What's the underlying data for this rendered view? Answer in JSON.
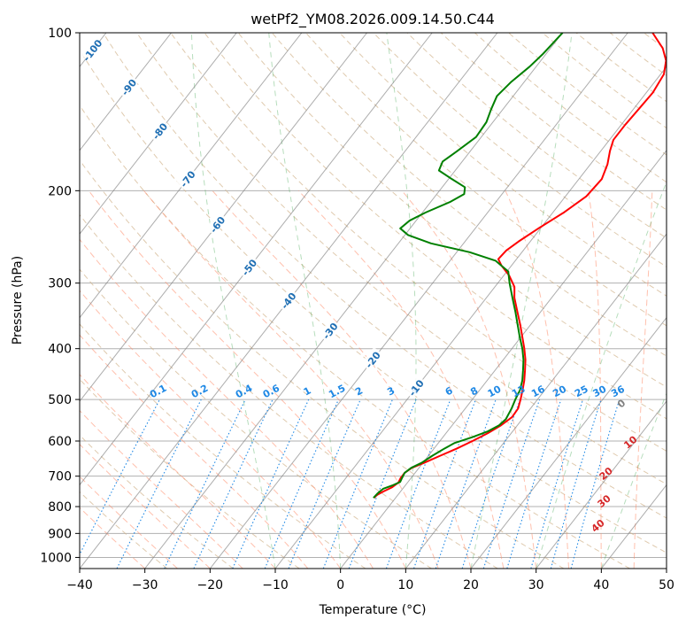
{
  "chart_data": {
    "type": "line",
    "subtype": "skew-t log-p",
    "title": "wetPf2_YM08.2026.009.14.50.C44",
    "xlabel": "Temperature (°C)",
    "ylabel": "Pressure (hPa)",
    "xlim": [
      -40,
      50
    ],
    "ylim": [
      1050,
      100
    ],
    "y_scale": "log",
    "grid": true,
    "x_ticks": [
      -40,
      -30,
      -20,
      -10,
      0,
      10,
      20,
      30,
      40,
      50
    ],
    "x_tick_labels": [
      "−40",
      "−30",
      "−20",
      "−10",
      "0",
      "10",
      "20",
      "30",
      "40",
      "50"
    ],
    "y_ticks": [
      100,
      200,
      300,
      400,
      500,
      600,
      700,
      800,
      900,
      1000
    ],
    "y_tick_labels": [
      "100",
      "200",
      "300",
      "400",
      "500",
      "600",
      "700",
      "800",
      "900",
      "1000"
    ],
    "series": [
      {
        "role": "temperature",
        "color": "#ff0000",
        "points": [
          [
            770,
            -3.3
          ],
          [
            760,
            -3.2
          ],
          [
            748,
            -2.6
          ],
          [
            735,
            -1.8
          ],
          [
            720,
            -1.4
          ],
          [
            705,
            -1.6
          ],
          [
            690,
            -1.6
          ],
          [
            675,
            -1.1
          ],
          [
            660,
            0.2
          ],
          [
            640,
            1.8
          ],
          [
            620,
            3.5
          ],
          [
            600,
            5.0
          ],
          [
            580,
            6.4
          ],
          [
            560,
            7.5
          ],
          [
            540,
            8.2
          ],
          [
            520,
            8.1
          ],
          [
            500,
            7.4
          ],
          [
            480,
            6.6
          ],
          [
            460,
            5.7
          ],
          [
            440,
            4.6
          ],
          [
            420,
            3.4
          ],
          [
            400,
            1.9
          ],
          [
            380,
            0.2
          ],
          [
            360,
            -1.6
          ],
          [
            340,
            -3.6
          ],
          [
            320,
            -5.7
          ],
          [
            305,
            -7.0
          ],
          [
            290,
            -9.2
          ],
          [
            278,
            -11.5
          ],
          [
            270,
            -12.8
          ],
          [
            260,
            -12.6
          ],
          [
            250,
            -11.8
          ],
          [
            235,
            -10.2
          ],
          [
            220,
            -8.3
          ],
          [
            205,
            -6.8
          ],
          [
            190,
            -6.5
          ],
          [
            178,
            -7.4
          ],
          [
            168,
            -8.6
          ],
          [
            160,
            -9.4
          ],
          [
            150,
            -9.4
          ],
          [
            140,
            -9.2
          ],
          [
            130,
            -9.0
          ],
          [
            120,
            -9.5
          ],
          [
            113,
            -10.8
          ],
          [
            107,
            -12.8
          ],
          [
            100,
            -16.2
          ]
        ]
      },
      {
        "role": "dewpoint",
        "color": "#008000",
        "points": [
          [
            770,
            -3.4
          ],
          [
            755,
            -3.3
          ],
          [
            740,
            -3.0
          ],
          [
            728,
            -1.9
          ],
          [
            718,
            -1.2
          ],
          [
            705,
            -1.4
          ],
          [
            690,
            -1.6
          ],
          [
            675,
            -1.2
          ],
          [
            660,
            -0.2
          ],
          [
            640,
            0.6
          ],
          [
            620,
            1.6
          ],
          [
            605,
            2.5
          ],
          [
            590,
            4.5
          ],
          [
            575,
            6.2
          ],
          [
            560,
            7.2
          ],
          [
            545,
            7.5
          ],
          [
            520,
            7.1
          ],
          [
            500,
            6.6
          ],
          [
            480,
            6.2
          ],
          [
            460,
            5.4
          ],
          [
            440,
            4.3
          ],
          [
            420,
            3.1
          ],
          [
            400,
            1.6
          ],
          [
            380,
            -0.2
          ],
          [
            360,
            -2.0
          ],
          [
            340,
            -3.9
          ],
          [
            320,
            -6.0
          ],
          [
            300,
            -8.2
          ],
          [
            285,
            -9.8
          ],
          [
            272,
            -13.0
          ],
          [
            262,
            -18.0
          ],
          [
            252,
            -25.0
          ],
          [
            243,
            -29.5
          ],
          [
            236,
            -31.5
          ],
          [
            228,
            -31.0
          ],
          [
            220,
            -29.5
          ],
          [
            210,
            -27.0
          ],
          [
            203,
            -25.8
          ],
          [
            197,
            -26.5
          ],
          [
            190,
            -29.5
          ],
          [
            183,
            -32.5
          ],
          [
            176,
            -33.0
          ],
          [
            168,
            -32.0
          ],
          [
            158,
            -30.8
          ],
          [
            148,
            -31.0
          ],
          [
            140,
            -31.8
          ],
          [
            132,
            -32.5
          ],
          [
            124,
            -32.0
          ],
          [
            116,
            -31.0
          ],
          [
            110,
            -30.5
          ],
          [
            104,
            -30.2
          ],
          [
            100,
            -30.0
          ]
        ]
      }
    ],
    "isotherm_labels": [
      "-100",
      "-90",
      "-80",
      "-70",
      "-60",
      "-50",
      "-40",
      "-30",
      "-20",
      "-10"
    ],
    "mixing_ratio_labels": [
      "0.1",
      "0.2",
      "0.4",
      "0.6",
      "1",
      "1.5",
      "2",
      "3",
      "4",
      "6",
      "8",
      "10",
      "13",
      "16",
      "20",
      "25",
      "30",
      "36"
    ],
    "moist_adiabat_labels": [
      "0",
      "10",
      "20",
      "30",
      "40"
    ],
    "colors": {
      "temperature": "#ff0000",
      "dewpoint": "#008000",
      "isotherm": "#808080",
      "isotherm_label": "#1f6fb4",
      "dry_adiabat": "#d2b48c",
      "moist_adiabat": "#ff8c69",
      "mixing_ratio": "#1e88e5",
      "wetbulb": "#2e9e3e",
      "moist_label": "#d62728"
    }
  }
}
